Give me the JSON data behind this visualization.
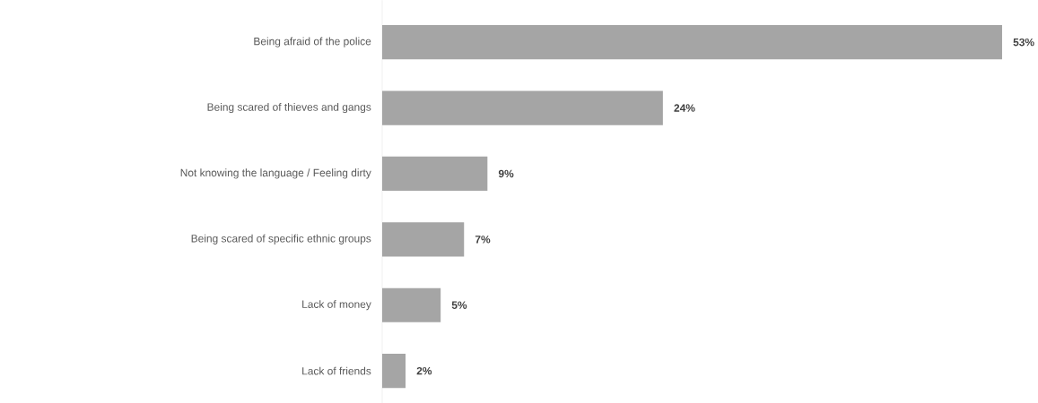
{
  "chart_data": {
    "type": "bar",
    "orientation": "horizontal",
    "categories": [
      "Being afraid of the police",
      "Being scared of thieves and gangs",
      "Not knowing the language / Feeling dirty",
      "Being scared of specific ethnic groups",
      "Lack of money",
      "Lack of friends"
    ],
    "values": [
      53,
      24,
      9,
      7,
      5,
      2
    ],
    "value_labels": [
      "53%",
      "24%",
      "9%",
      "7%",
      "5%",
      "2%"
    ],
    "color": "#a5a5a5"
  }
}
